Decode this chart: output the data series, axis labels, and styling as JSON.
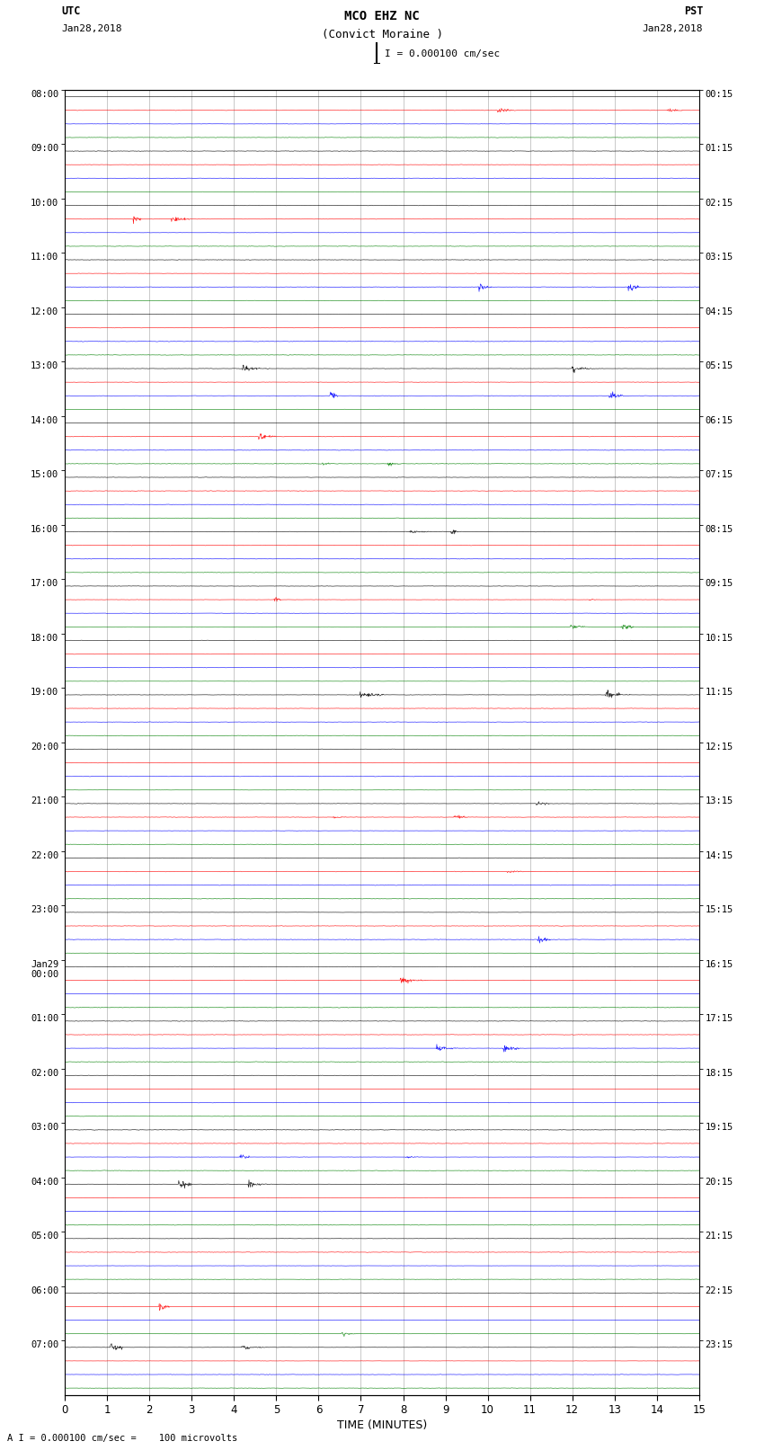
{
  "title_line1": "MCO EHZ NC",
  "title_line2": "(Convict Moraine )",
  "scale_text": "I = 0.000100 cm/sec",
  "left_label_top": "UTC",
  "left_label_date": "Jan28,2018",
  "right_label_top": "PST",
  "right_label_date": "Jan28,2018",
  "bottom_label": "TIME (MINUTES)",
  "bottom_note": "A I = 0.000100 cm/sec =    100 microvolts",
  "xlabel_ticks": [
    0,
    1,
    2,
    3,
    4,
    5,
    6,
    7,
    8,
    9,
    10,
    11,
    12,
    13,
    14,
    15
  ],
  "utc_times_hourly": [
    "08:00",
    "09:00",
    "10:00",
    "11:00",
    "12:00",
    "13:00",
    "14:00",
    "15:00",
    "16:00",
    "17:00",
    "18:00",
    "19:00",
    "20:00",
    "21:00",
    "22:00",
    "23:00",
    "Jan29\n00:00",
    "01:00",
    "02:00",
    "03:00",
    "04:00",
    "05:00",
    "06:00",
    "07:00"
  ],
  "pst_times_hourly": [
    "00:15",
    "01:15",
    "02:15",
    "03:15",
    "04:15",
    "05:15",
    "06:15",
    "07:15",
    "08:15",
    "09:15",
    "10:15",
    "11:15",
    "12:15",
    "13:15",
    "14:15",
    "15:15",
    "16:15",
    "17:15",
    "18:15",
    "19:15",
    "20:15",
    "21:15",
    "22:15",
    "23:15"
  ],
  "n_rows": 96,
  "n_groups": 24,
  "traces_per_group": 4,
  "colors_cycle": [
    "black",
    "red",
    "blue",
    "green"
  ],
  "background_color": "white",
  "grid_color": "#888888",
  "seed": 42
}
